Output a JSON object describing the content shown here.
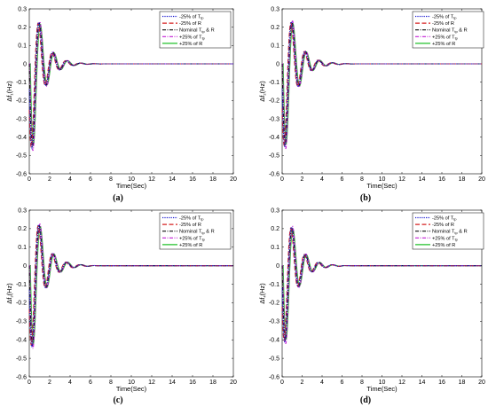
{
  "chart_data": [
    {
      "type": "line",
      "panel_label": "(a)",
      "xlabel": "Time(Sec)",
      "ylabel": "Δf",
      "ylabel_sub": "1",
      "ylabel_unit": "(Hz)",
      "xlim": [
        0,
        20
      ],
      "ylim": [
        -0.6,
        0.3
      ],
      "xticks": [
        0,
        2,
        4,
        6,
        8,
        10,
        12,
        14,
        16,
        18,
        20
      ],
      "yticks": [
        -0.6,
        -0.5,
        -0.4,
        -0.3,
        -0.2,
        -0.1,
        0,
        0.1,
        0.2,
        0.3
      ],
      "response": {
        "initial": 0,
        "dip_time": 0.45,
        "dip": -0.57,
        "peak_time": 1.15,
        "peak": 0.23,
        "damping": 0.95,
        "period": 1.35,
        "settle": 6
      },
      "legend_position": "top-right",
      "series": [
        {
          "name": "-25% of T",
          "sub": "tp",
          "color": "#1f1fd1",
          "dash": "1.2,1.2",
          "lag": 0.05,
          "amp": 1.02
        },
        {
          "name": "-25% of R",
          "sub": "",
          "color": "#d62020",
          "dash": "5,2.5",
          "lag": 0.1,
          "amp": 1.0
        },
        {
          "name": "Nominal T",
          "sub": "tp",
          "suffix": " & R",
          "color": "#111111",
          "dash": "4,1.5,1,1.5",
          "lag": 0.0,
          "amp": 1.0
        },
        {
          "name": "+25% of T",
          "sub": "tp",
          "color": "#c21fd6",
          "dash": "4,1.5,1,1.5",
          "lag": -0.06,
          "amp": 1.04
        },
        {
          "name": "+25% of R",
          "sub": "",
          "color": "#21c02a",
          "dash": "",
          "lag": -0.1,
          "amp": 0.98
        }
      ]
    },
    {
      "type": "line",
      "panel_label": "(b)",
      "xlabel": "Time(Sec)",
      "ylabel": "Δf",
      "ylabel_sub": "2",
      "ylabel_unit": "(Hz)",
      "xlim": [
        0,
        20
      ],
      "ylim": [
        -0.6,
        0.3
      ],
      "xticks": [
        0,
        2,
        4,
        6,
        8,
        10,
        12,
        14,
        16,
        18,
        20
      ],
      "yticks": [
        -0.6,
        -0.5,
        -0.4,
        -0.3,
        -0.2,
        -0.1,
        0,
        0.1,
        0.2,
        0.3
      ],
      "response": {
        "initial": 0,
        "dip_time": 0.45,
        "dip": -0.55,
        "peak_time": 1.15,
        "peak": 0.23,
        "damping": 0.9,
        "period": 1.35,
        "settle": 6
      },
      "legend_position": "top-right",
      "series": [
        {
          "name": "-25% of T",
          "sub": "tp",
          "color": "#1f1fd1",
          "dash": "1.2,1.2",
          "lag": 0.05,
          "amp": 1.02
        },
        {
          "name": "-25% of R",
          "sub": "",
          "color": "#d62020",
          "dash": "5,2.5",
          "lag": 0.1,
          "amp": 1.0
        },
        {
          "name": "Nominal T",
          "sub": "tp",
          "suffix": " & R",
          "color": "#111111",
          "dash": "4,1.5,1,1.5",
          "lag": 0.0,
          "amp": 1.0
        },
        {
          "name": "+25% of T",
          "sub": "tp",
          "color": "#c21fd6",
          "dash": "4,1.5,1,1.5",
          "lag": -0.06,
          "amp": 1.04
        },
        {
          "name": "+25% of R",
          "sub": "",
          "color": "#21c02a",
          "dash": "",
          "lag": -0.1,
          "amp": 0.98
        }
      ]
    },
    {
      "type": "line",
      "panel_label": "(c)",
      "xlabel": "Time(Sec)",
      "ylabel": "Δf",
      "ylabel_sub": "3",
      "ylabel_unit": "(Hz)",
      "xlim": [
        0,
        20
      ],
      "ylim": [
        -0.6,
        0.3
      ],
      "xticks": [
        0,
        2,
        4,
        6,
        8,
        10,
        12,
        14,
        16,
        18,
        20
      ],
      "yticks": [
        -0.6,
        -0.5,
        -0.4,
        -0.3,
        -0.2,
        -0.1,
        0,
        0.1,
        0.2,
        0.3
      ],
      "response": {
        "initial": 0,
        "dip_time": 0.45,
        "dip": -0.53,
        "peak_time": 1.15,
        "peak": 0.23,
        "damping": 0.9,
        "period": 1.35,
        "settle": 6
      },
      "legend_position": "top-right",
      "series": [
        {
          "name": "-25% of T",
          "sub": "tp",
          "color": "#1f1fd1",
          "dash": "1.2,1.2",
          "lag": 0.05,
          "amp": 1.02
        },
        {
          "name": "-25% of R",
          "sub": "",
          "color": "#d62020",
          "dash": "5,2.5",
          "lag": 0.1,
          "amp": 1.0
        },
        {
          "name": "Nominal T",
          "sub": "tp",
          "suffix": " & R",
          "color": "#111111",
          "dash": "4,1.5,1,1.5",
          "lag": 0.0,
          "amp": 1.0
        },
        {
          "name": "+25% of T",
          "sub": "tp",
          "color": "#c21fd6",
          "dash": "4,1.5,1,1.5",
          "lag": -0.06,
          "amp": 1.04
        },
        {
          "name": "+25% of R",
          "sub": "",
          "color": "#21c02a",
          "dash": "",
          "lag": -0.1,
          "amp": 0.98
        }
      ]
    },
    {
      "type": "line",
      "panel_label": "(d)",
      "xlabel": "Time(Sec)",
      "ylabel": "Δf",
      "ylabel_sub": "4",
      "ylabel_unit": "(Hz)",
      "xlim": [
        0,
        20
      ],
      "ylim": [
        -0.6,
        0.3
      ],
      "xticks": [
        0,
        2,
        4,
        6,
        8,
        10,
        12,
        14,
        16,
        18,
        20
      ],
      "yticks": [
        -0.6,
        -0.5,
        -0.4,
        -0.3,
        -0.2,
        -0.1,
        0,
        0.1,
        0.2,
        0.3
      ],
      "response": {
        "initial": 0,
        "dip_time": 0.45,
        "dip": -0.5,
        "peak_time": 1.2,
        "peak": 0.26,
        "damping": 0.9,
        "period": 1.35,
        "settle": 6
      },
      "legend_position": "top-right",
      "series": [
        {
          "name": "-25% of T",
          "sub": "tp",
          "color": "#1f1fd1",
          "dash": "1.2,1.2",
          "lag": 0.05,
          "amp": 1.02
        },
        {
          "name": "-25% of R",
          "sub": "",
          "color": "#d62020",
          "dash": "5,2.5",
          "lag": 0.1,
          "amp": 1.0
        },
        {
          "name": "Nominal T",
          "sub": "tp",
          "suffix": " & R",
          "color": "#111111",
          "dash": "4,1.5,1,1.5",
          "lag": 0.0,
          "amp": 1.0
        },
        {
          "name": "+25% of T",
          "sub": "tp",
          "color": "#c21fd6",
          "dash": "4,1.5,1,1.5",
          "lag": -0.06,
          "amp": 1.04
        },
        {
          "name": "+25% of R",
          "sub": "",
          "color": "#21c02a",
          "dash": "",
          "lag": -0.1,
          "amp": 0.98
        }
      ]
    }
  ]
}
